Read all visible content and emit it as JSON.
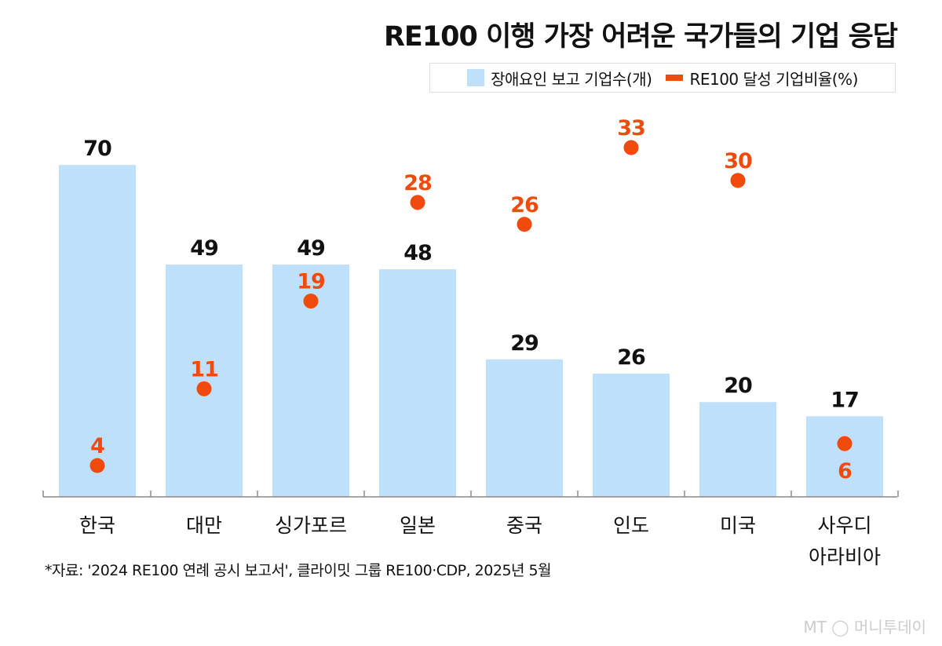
{
  "chart_data": {
    "type": "bar",
    "title": "RE100 이행 가장 어려운 국가들의 기업 응답",
    "categories": [
      "한국",
      "대만",
      "싱가포르",
      "일본",
      "중국",
      "인도",
      "미국",
      "사우디 아라비아"
    ],
    "series": [
      {
        "name": "장애요인 보고 기업수(개)",
        "type": "bar",
        "color": "#bfe0fb",
        "values": [
          70,
          49,
          49,
          48,
          29,
          26,
          20,
          17
        ]
      },
      {
        "name": "RE100 달성 기업비율(%)",
        "type": "scatter",
        "color": "#f04a0c",
        "values": [
          4,
          11,
          19,
          28,
          26,
          33,
          30,
          6
        ]
      }
    ],
    "legend": "top-right",
    "grid": false,
    "xlabel": "",
    "ylabel": ""
  },
  "source": "*자료: '2024 RE100 연례 공시 보고서', 클라이밋 그룹 RE100·CDP, 2025년 5월",
  "logo": "MT 머니투데이"
}
